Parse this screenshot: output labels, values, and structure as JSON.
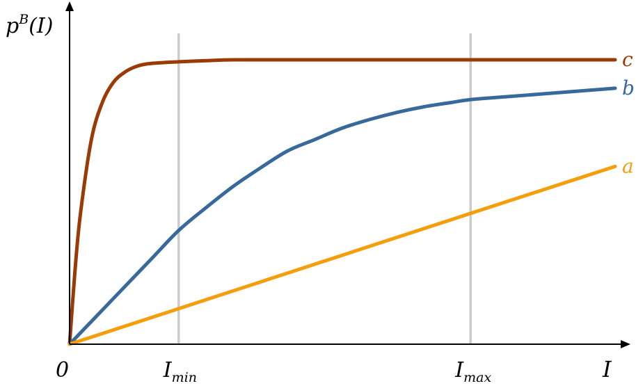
{
  "chart_data": {
    "type": "line",
    "ylabel": {
      "base": "p",
      "sup": "B",
      "rest": "(I)"
    },
    "xlabel": "I",
    "origin_label": "0",
    "xlim": [
      0,
      1
    ],
    "ylim": [
      0,
      1
    ],
    "grid": false,
    "reference_lines": [
      {
        "x": 0.2,
        "label_base": "I",
        "label_sub": "min"
      },
      {
        "x": 0.735,
        "label_base": "I",
        "label_sub": "max"
      }
    ],
    "series": [
      {
        "name": "c",
        "color": "#9A3A06",
        "x": [
          0,
          0.01,
          0.02,
          0.04,
          0.06,
          0.08,
          0.1,
          0.12,
          0.14,
          0.17,
          0.2,
          0.25,
          0.3,
          0.4,
          0.5,
          0.6,
          0.8,
          1.0
        ],
        "y": [
          0,
          0.26,
          0.46,
          0.72,
          0.85,
          0.92,
          0.955,
          0.975,
          0.985,
          0.99,
          0.993,
          0.997,
          1.0,
          1.0,
          1.0,
          1.0,
          1.0,
          1.0
        ]
      },
      {
        "name": "b",
        "color": "#37699B",
        "x": [
          0,
          0.05,
          0.1,
          0.15,
          0.2,
          0.25,
          0.3,
          0.35,
          0.4,
          0.45,
          0.5,
          0.55,
          0.6,
          0.65,
          0.7,
          0.735,
          0.8,
          0.9,
          1.0
        ],
        "y": [
          0,
          0.1,
          0.2,
          0.3,
          0.4,
          0.48,
          0.555,
          0.62,
          0.68,
          0.72,
          0.76,
          0.79,
          0.815,
          0.835,
          0.85,
          0.86,
          0.87,
          0.885,
          0.9
        ]
      },
      {
        "name": "a",
        "color": "#F59E0B",
        "x": [
          0,
          0.2,
          0.735,
          1.0
        ],
        "y": [
          0,
          0.125,
          0.46,
          0.625
        ]
      }
    ]
  }
}
